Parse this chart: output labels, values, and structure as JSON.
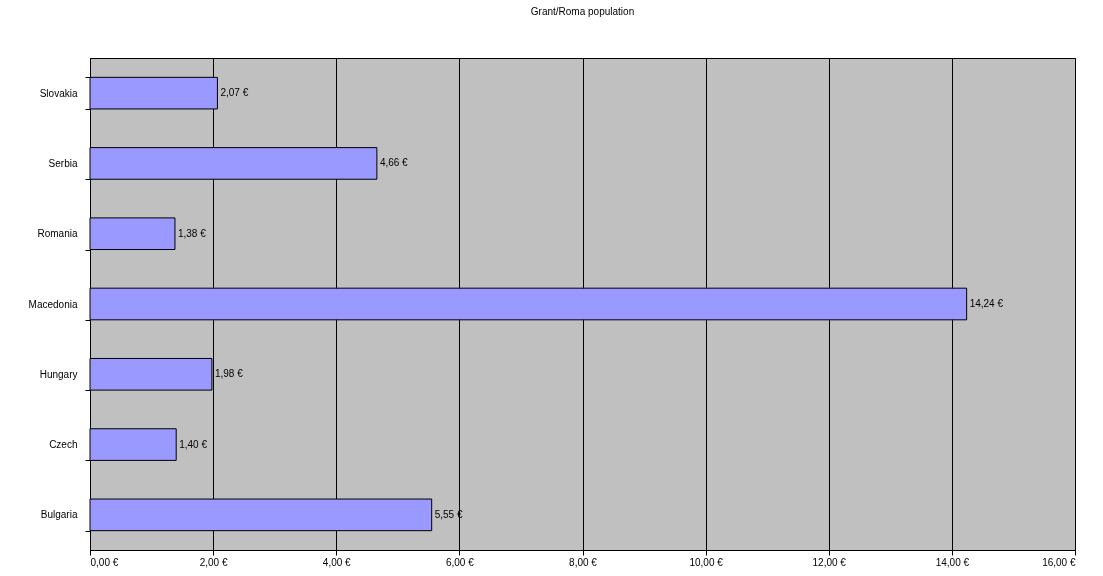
{
  "chart_data": {
    "type": "bar",
    "orientation": "horizontal",
    "title": "Grant/Roma population",
    "categories": [
      "Slovakia",
      "Serbia",
      "Romania",
      "Macedonia",
      "Hungary",
      "Czech",
      "Bulgaria"
    ],
    "values": [
      2.07,
      4.66,
      1.38,
      14.24,
      1.98,
      1.4,
      5.55
    ],
    "value_labels": [
      "2,07 €",
      "4,66 €",
      "1,38 €",
      "14,24 €",
      "1,98 €",
      "1,40 €",
      "5,55 €"
    ],
    "color": "#9999ff",
    "xlim": [
      0,
      16
    ],
    "xticks": [
      {
        "value": 0,
        "label": "0,00 €"
      },
      {
        "value": 2,
        "label": "2,00 €"
      },
      {
        "value": 4,
        "label": "4,00 €"
      },
      {
        "value": 6,
        "label": "6,00 €"
      },
      {
        "value": 8,
        "label": "8,00 €"
      },
      {
        "value": 10,
        "label": "10,00 €"
      },
      {
        "value": 12,
        "label": "12,00 €"
      },
      {
        "value": 14,
        "label": "14,00 €"
      },
      {
        "value": 16,
        "label": "16,00 €"
      }
    ],
    "grid": "x"
  }
}
